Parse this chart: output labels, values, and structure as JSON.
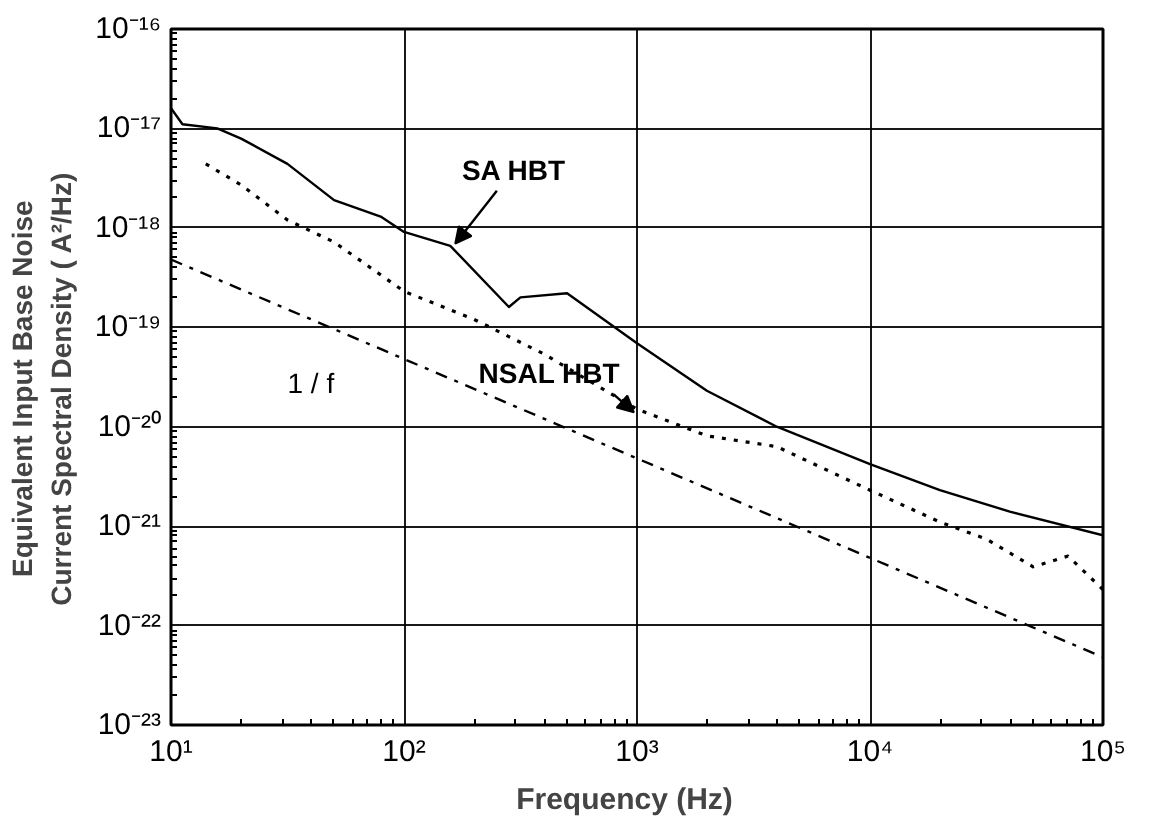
{
  "chart_data": {
    "type": "line",
    "xlabel": "Frequency    (Hz)",
    "ylabel": "Equivalent  Input  Base  Noise\nCurrent  Spectral  Density  ( A²/Hz)",
    "log": "xy",
    "grid": true,
    "marker": "none",
    "xlim": [
      10,
      100000
    ],
    "ylim": [
      1e-23,
      1e-16
    ],
    "xticks": [
      {
        "value": 10,
        "label": "10¹"
      },
      {
        "value": 100,
        "label": "10²"
      },
      {
        "value": 1000,
        "label": "10³"
      },
      {
        "value": 10000,
        "label": "10⁴"
      },
      {
        "value": 100000,
        "label": "10⁵"
      }
    ],
    "yticks": [
      {
        "value": 1e-23,
        "label": "10⁻²³"
      },
      {
        "value": 1e-22,
        "label": "10⁻²²"
      },
      {
        "value": 1e-21,
        "label": "10⁻²¹"
      },
      {
        "value": 1e-20,
        "label": "10⁻²⁰"
      },
      {
        "value": 1e-19,
        "label": "10⁻¹⁹"
      },
      {
        "value": 1e-18,
        "label": "10⁻¹⁸"
      },
      {
        "value": 1e-17,
        "label": "10⁻¹⁷"
      },
      {
        "value": 1e-16,
        "label": "10⁻¹⁶"
      }
    ],
    "series": [
      {
        "name": "SA HBT",
        "color": "#000000",
        "line_style": "solid",
        "x": [
          10,
          11.2,
          15.8,
          20,
          31.6,
          50.1,
          79.4,
          100,
          158,
          282,
          316,
          501,
          1000,
          1995,
          3981,
          10000,
          19953,
          39811,
          100000
        ],
        "values": [
          1.6e-17,
          1.1e-17,
          1e-17,
          7.9e-18,
          4.4e-18,
          1.9e-18,
          1.3e-18,
          9.1e-19,
          6.6e-19,
          1.6e-19,
          2e-19,
          2.2e-19,
          6.9e-20,
          2.3e-20,
          1e-20,
          4.2e-21,
          2.3e-21,
          1.4e-21,
          8.1e-22
        ]
      },
      {
        "name": "NSAL HBT",
        "color": "#000000",
        "line_style": "dotted",
        "x": [
          14.1,
          20,
          31.6,
          50.1,
          100,
          200,
          398,
          1000,
          1995,
          3981,
          10000,
          19953,
          31623,
          50119,
          70795,
          100000
        ],
        "values": [
          4.4e-18,
          2.7e-18,
          1.2e-18,
          7.2e-19,
          2.3e-19,
          1.2e-19,
          5.4e-20,
          1.5e-20,
          8.1e-21,
          6.3e-21,
          2.3e-21,
          1.1e-21,
          7.4e-22,
          3.9e-22,
          5e-22,
          2.3e-22
        ]
      },
      {
        "name": "1 / f",
        "color": "#000000",
        "line_style": "dashed",
        "x": [
          10,
          100000
        ],
        "values": [
          4.8e-19,
          4.8e-23
        ]
      }
    ]
  }
}
